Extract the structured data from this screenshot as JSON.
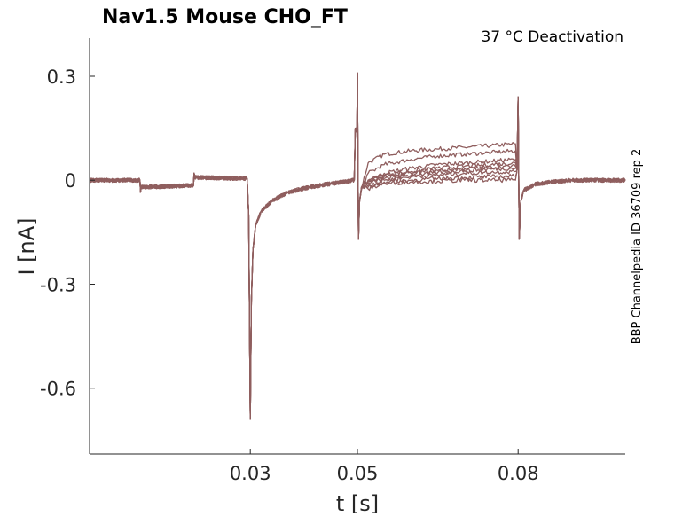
{
  "chart_data": {
    "type": "line",
    "title": "Nav1.5  Mouse  CHO_FT",
    "annotation": "37 °C  Deactivation",
    "side_label": "BBP Channelpedia ID 36709 rep 2",
    "xlabel": "t [s]",
    "ylabel": "I [nA]",
    "xlim": [
      0,
      0.1
    ],
    "ylim": [
      -0.79,
      0.41
    ],
    "xticks": [
      {
        "v": 0.03,
        "label": "0.03"
      },
      {
        "v": 0.05,
        "label": "0.05"
      },
      {
        "v": 0.08,
        "label": "0.08"
      }
    ],
    "yticks": [
      {
        "v": 0.3,
        "label": "0.3"
      },
      {
        "v": 0,
        "label": "0"
      },
      {
        "v": -0.3,
        "label": "-0.3"
      },
      {
        "v": -0.6,
        "label": "-0.6"
      }
    ],
    "grid": false,
    "color": "#8f5e5e",
    "common_pre": {
      "x": [
        0,
        0.0094,
        0.0095,
        0.0096,
        0.0194,
        0.0195,
        0.0197,
        0.0294,
        0.0297,
        0.0299,
        0.03,
        0.0302,
        0.0305,
        0.031,
        0.032,
        0.034,
        0.037,
        0.041,
        0.045,
        0.0494,
        0.0496,
        0.0499,
        0.05,
        0.0502,
        0.0504,
        0.0508
      ],
      "y": [
        0,
        0,
        -0.035,
        -0.02,
        -0.015,
        0.02,
        0.008,
        0.005,
        -0.1,
        -0.5,
        -0.69,
        -0.35,
        -0.2,
        -0.13,
        -0.09,
        -0.06,
        -0.035,
        -0.02,
        -0.01,
        0.0,
        0.15,
        0.14,
        0.31,
        -0.17,
        -0.06,
        -0.02
      ]
    },
    "step_x": [
      0.052,
      0.055,
      0.06,
      0.065,
      0.07,
      0.075,
      0.0795
    ],
    "sweeps": [
      {
        "step": [
          0.05,
          0.075,
          0.085,
          0.09,
          0.095,
          0.1,
          0.105
        ]
      },
      {
        "step": [
          0.02,
          0.045,
          0.06,
          0.07,
          0.075,
          0.08,
          0.085
        ]
      },
      {
        "step": [
          0.0,
          0.02,
          0.035,
          0.045,
          0.05,
          0.055,
          0.06
        ]
      },
      {
        "step": [
          0.0,
          0.015,
          0.025,
          0.035,
          0.04,
          0.045,
          0.05
        ]
      },
      {
        "step": [
          -0.005,
          0.01,
          0.02,
          0.028,
          0.033,
          0.038,
          0.04
        ]
      },
      {
        "step": [
          -0.01,
          0.005,
          0.015,
          0.022,
          0.028,
          0.032,
          0.035
        ]
      },
      {
        "step": [
          -0.015,
          0.0,
          0.01,
          0.015,
          0.02,
          0.023,
          0.025
        ]
      },
      {
        "step": [
          -0.02,
          -0.005,
          0.0,
          0.005,
          0.008,
          0.01,
          0.012
        ]
      },
      {
        "step": [
          -0.025,
          -0.01,
          -0.005,
          -0.003,
          0.0,
          0.0,
          0.0
        ]
      }
    ],
    "common_post": {
      "x": [
        0.0798,
        0.08,
        0.0802,
        0.0805,
        0.081,
        0.083,
        0.086,
        0.09,
        0.1
      ],
      "y": [
        0.03,
        0.24,
        -0.17,
        -0.06,
        -0.03,
        -0.012,
        -0.005,
        0.0,
        0.0
      ]
    }
  }
}
